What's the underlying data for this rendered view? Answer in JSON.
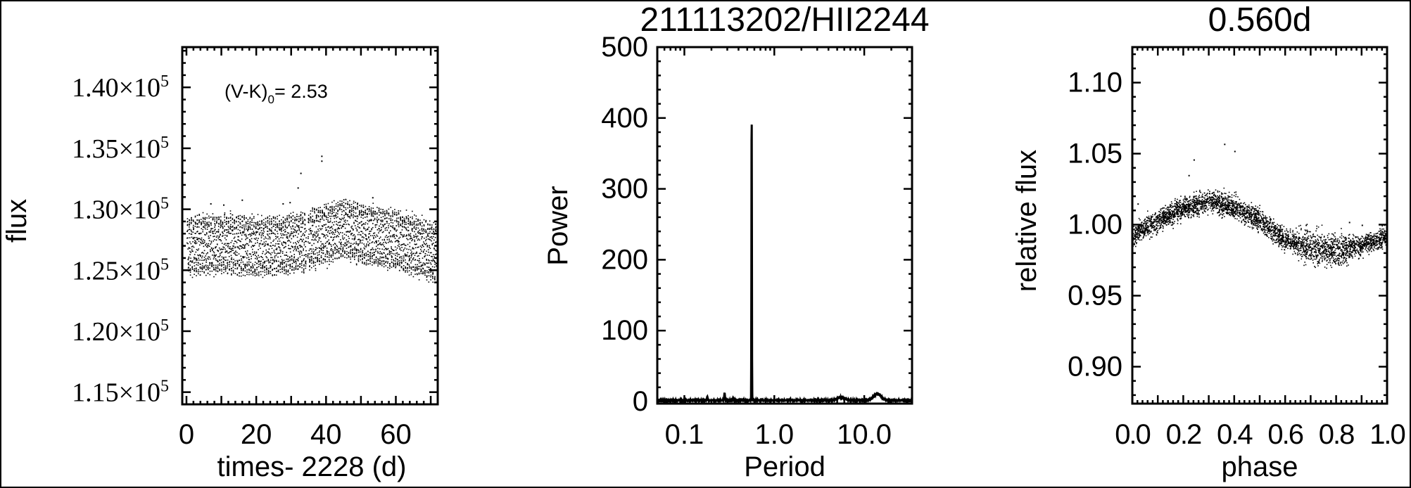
{
  "colors": {
    "ink": "#000000",
    "background": "#ffffff"
  },
  "chart_data": [
    {
      "type": "scatter",
      "title": "",
      "xlabel": "times- 2228 (d)",
      "ylabel": "flux",
      "xlim": [
        -1.2,
        72
      ],
      "ylim": [
        114000,
        143300
      ],
      "xticks": [
        0,
        20,
        40,
        60
      ],
      "xtick_labels": [
        "0",
        "20",
        "40",
        "60"
      ],
      "yticks": [
        115000,
        120000,
        125000,
        130000,
        135000,
        140000
      ],
      "ytick_labels": [
        {
          "base": "1.15×10",
          "exp": "5"
        },
        {
          "base": "1.20×10",
          "exp": "5"
        },
        {
          "base": "1.25×10",
          "exp": "5"
        },
        {
          "base": "1.30×10",
          "exp": "5"
        },
        {
          "base": "1.35×10",
          "exp": "5"
        },
        {
          "base": "1.40×10",
          "exp": "5"
        }
      ],
      "annotation": {
        "pre": "(V-K)",
        "sub": "0",
        "post": "= 2.53"
      },
      "trend": {
        "time": [
          0,
          10,
          20,
          30,
          40,
          45,
          50,
          60,
          70,
          72
        ],
        "mean_flux": [
          127000,
          127200,
          127000,
          127200,
          128000,
          128500,
          128000,
          127500,
          126600,
          126500
        ]
      },
      "modulation_period_d": 0.56,
      "modulation_amplitude": 0.0165,
      "outliers": [
        [
          38.6,
          134400
        ],
        [
          38.6,
          134000
        ],
        [
          32.6,
          133000
        ],
        [
          31.8,
          131800
        ],
        [
          6.8,
          130500
        ],
        [
          10.5,
          130400
        ],
        [
          15.8,
          130800
        ],
        [
          27.5,
          130500
        ],
        [
          29.5,
          130600
        ],
        [
          53.2,
          131000
        ]
      ],
      "grid": false,
      "legend": "none"
    },
    {
      "type": "line",
      "title": "211113202/HII2244",
      "xlabel": "Period",
      "ylabel": "Power",
      "xscale": "log",
      "xlim": [
        0.05,
        34
      ],
      "ylim": [
        -3,
        500
      ],
      "xticks": [
        0.1,
        1.0,
        10.0
      ],
      "xtick_labels": [
        "0.1",
        "1.0",
        "10.0"
      ],
      "yticks": [
        0,
        100,
        200,
        300,
        400,
        500
      ],
      "ytick_labels": [
        "0",
        "100",
        "200",
        "300",
        "400",
        "500"
      ],
      "peaks": [
        {
          "period": 0.56,
          "power": 412
        },
        {
          "period": 0.28,
          "power": 11
        },
        {
          "period": 0.18,
          "power": 5
        },
        {
          "period": 0.35,
          "power": 4
        },
        {
          "period": 5.5,
          "power": 4
        },
        {
          "period": 14.0,
          "power": 9
        }
      ],
      "grid": false,
      "legend": "none"
    },
    {
      "type": "scatter",
      "title": "0.560d",
      "xlabel": "phase",
      "ylabel": "relative flux",
      "xlim": [
        0,
        1
      ],
      "ylim": [
        0.874,
        1.125
      ],
      "xticks": [
        0,
        0.2,
        0.4,
        0.6,
        0.8,
        1.0
      ],
      "xtick_labels": [
        "0.0",
        "0.2",
        "0.4",
        "0.6",
        "0.8",
        "1.0"
      ],
      "yticks": [
        0.9,
        0.95,
        1.0,
        1.05,
        1.1
      ],
      "ytick_labels": [
        "0.90",
        "0.95",
        "1.00",
        "1.05",
        "1.10"
      ],
      "phase_curve": {
        "phase": [
          0.0,
          0.1,
          0.2,
          0.3,
          0.4,
          0.5,
          0.6,
          0.7,
          0.8,
          0.9,
          1.0
        ],
        "mean_flux": [
          0.993,
          1.003,
          1.012,
          1.017,
          1.013,
          1.003,
          0.99,
          0.984,
          0.982,
          0.986,
          0.992
        ]
      },
      "outliers": [
        [
          0.36,
          1.057
        ],
        [
          0.4,
          1.052
        ],
        [
          0.24,
          1.046
        ],
        [
          0.22,
          1.035
        ],
        [
          0.02,
          1.015
        ],
        [
          0.68,
          1.0
        ],
        [
          0.85,
          1.002
        ],
        [
          0.9,
          1.0
        ]
      ],
      "grid": false,
      "legend": "none"
    }
  ]
}
